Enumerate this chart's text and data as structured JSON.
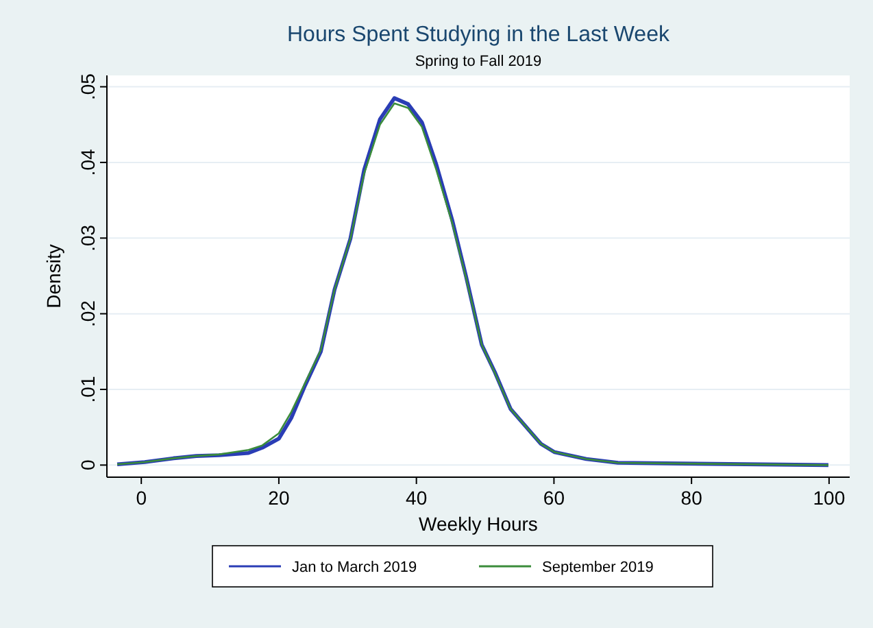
{
  "chart_data": {
    "type": "line",
    "title": "Hours Spent Studying in the Last Week",
    "subtitle": "Spring to Fall 2019",
    "xlabel": "Weekly Hours",
    "ylabel": "Density",
    "x": [
      -3.5,
      0.5,
      4.7,
      8,
      11.3,
      15.6,
      17.6,
      20,
      21.8,
      23.8,
      26.1,
      28.1,
      30.4,
      32.4,
      34.7,
      36.8,
      38.8,
      40.8,
      42.9,
      45.2,
      47.2,
      49.5,
      51.4,
      53.7,
      58.1,
      60.1,
      64.7,
      69.3,
      78.5,
      99.9
    ],
    "series": [
      {
        "name": "Jan to March 2019",
        "color": "#2a3db5",
        "values": [
          0.0001,
          0.0004,
          0.0009,
          0.0012,
          0.0013,
          0.0016,
          0.0023,
          0.0035,
          0.0062,
          0.0105,
          0.015,
          0.0232,
          0.0299,
          0.039,
          0.0457,
          0.0485,
          0.0477,
          0.0453,
          0.0397,
          0.0324,
          0.025,
          0.0159,
          0.0123,
          0.0074,
          0.0028,
          0.0017,
          0.0008,
          0.0003,
          0.0002,
          0.0
        ]
      },
      {
        "name": "September 2019",
        "color": "#3b8c3b",
        "values": [
          0.0001,
          0.0004,
          0.0009,
          0.0012,
          0.0014,
          0.002,
          0.0026,
          0.0042,
          0.007,
          0.0108,
          0.0152,
          0.0232,
          0.0299,
          0.0385,
          0.045,
          0.0478,
          0.0472,
          0.0447,
          0.039,
          0.032,
          0.0248,
          0.0159,
          0.0122,
          0.0074,
          0.0028,
          0.0017,
          0.0008,
          0.0003,
          0.0002,
          0.0
        ]
      }
    ],
    "xlim": [
      -5,
      103
    ],
    "xticks": [
      0,
      20,
      40,
      60,
      80,
      100
    ],
    "ylim": [
      -0.0016,
      0.0515
    ],
    "yticks": [
      0,
      {
        "value": 0.01,
        "label": ".01"
      },
      {
        "value": 0.02,
        "label": ".02"
      },
      {
        "value": 0.03,
        "label": ".03"
      },
      {
        "value": 0.04,
        "label": ".04"
      },
      {
        "value": 0.05,
        "label": ".05"
      }
    ],
    "grid": "y",
    "legend": "bottom",
    "marker": "none",
    "line_style": "solid"
  }
}
